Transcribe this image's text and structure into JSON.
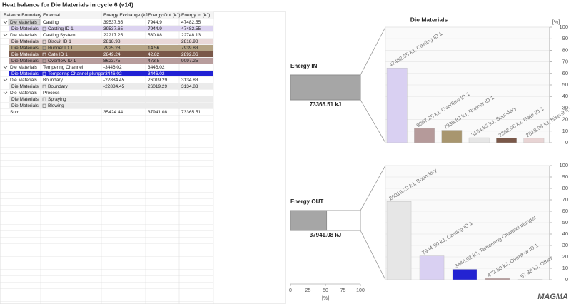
{
  "title": "Heat balance for Die Materials in cycle 6 (v14)",
  "table": {
    "columns": [
      "Balance Boundary",
      "External",
      "Energy Exchange (kJ)",
      "Energy Out (kJ)",
      "Energy In (kJ)"
    ],
    "rows": [
      [
        "Die Materials",
        "Casting",
        39537.65,
        7944.9,
        47482.55
      ],
      [
        "Die Materials",
        "Casting ID 1",
        39537.65,
        7944.9,
        47482.55
      ],
      [
        "Die Materials",
        "Casting System",
        22217.25,
        530.88,
        22748.13
      ],
      [
        "Die Materials",
        "Biscuit ID 1",
        2818.98,
        null,
        2818.98
      ],
      [
        "Die Materials",
        "Runner ID 1",
        7925.28,
        14.56,
        7939.83
      ],
      [
        "Die Materials",
        "Gate ID 1",
        2849.24,
        42.82,
        2892.06
      ],
      [
        "Die Materials",
        "Overflow ID 1",
        8623.75,
        473.5,
        9097.25
      ],
      [
        "Die Materials",
        "Tempering Channel",
        -3446.02,
        3446.02,
        null
      ],
      [
        "Die Materials",
        "Tempering Channel plunger",
        -3446.02,
        3446.02,
        null
      ],
      [
        "Die Materials",
        "Boundary",
        -22884.45,
        26019.29,
        3134.83
      ],
      [
        "Die Materials",
        "Boundary",
        -22884.45,
        26019.29,
        3134.83
      ],
      [
        "Die Materials",
        "Process",
        null,
        null,
        null
      ],
      [
        "Die Materials",
        "Spraying",
        null,
        null,
        null
      ],
      [
        "Die Materials",
        "Blowing",
        null,
        null,
        null
      ],
      [
        "Sum",
        null,
        35424.44,
        37941.08,
        73365.51
      ]
    ]
  },
  "chart_data": [
    {
      "type": "hbar",
      "categories": [
        "Energy IN",
        "Energy OUT"
      ],
      "values": [
        100,
        51.7
      ],
      "value_labels": [
        "73365.51 kJ",
        "37941.08 kJ"
      ],
      "color": "#a6a6a6",
      "xlim": [
        0,
        100
      ],
      "xticks": [
        0,
        25,
        50,
        75,
        100
      ],
      "xlabel": "[%]"
    },
    {
      "type": "bar",
      "title": "Die Materials",
      "ylabel": "[%]",
      "values": [
        64.7,
        12.4,
        10.8,
        4.3,
        3.9,
        3.8
      ],
      "value_labels": [
        "47482.55 kJ, Casting ID 1",
        "9097.25 kJ, Overflow ID 1",
        "7939.83 kJ, Runner ID 1",
        "3134.83 kJ, Boundary",
        "2892.06 kJ, Gate ID 1",
        "2818.98 kJ, Biscuit ID 1"
      ],
      "colors": [
        "#d9d0f2",
        "#b59a9a",
        "#a8966f",
        "#e6e6e6",
        "#7a5849",
        "#e8d4d4"
      ],
      "ylim": [
        0,
        100
      ],
      "yticks": [
        0,
        10,
        20,
        30,
        40,
        50,
        60,
        70,
        80,
        90,
        100
      ],
      "grid": true
    },
    {
      "type": "bar",
      "values": [
        68.6,
        20.9,
        9.1,
        1.2,
        0.2
      ],
      "value_labels": [
        "26019.29 kJ, Boundary",
        "7944.90 kJ, Casting ID 1",
        "3446.02 kJ, Tempering Channel plunger",
        "473.50 kJ, Overflow ID 1",
        "57.38 kJ, Other"
      ],
      "colors": [
        "#e6e6e6",
        "#d9d0f2",
        "#2323d2",
        "#b59a9a",
        "#cccccc"
      ],
      "ylim": [
        0,
        100
      ],
      "yticks": [
        0,
        10,
        20,
        30,
        40,
        50,
        60,
        70,
        80,
        90,
        100
      ],
      "grid": true
    }
  ],
  "logo": "MAGMA"
}
